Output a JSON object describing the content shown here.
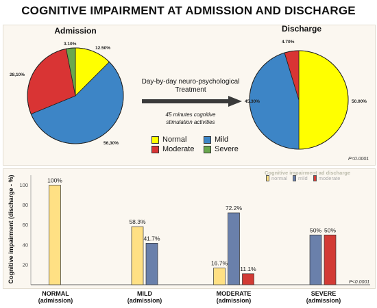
{
  "title": "COGNITIVE IMPAIRMENT AT ADMISSION AND DISCHARGE",
  "colors": {
    "normal": "#ffff00",
    "mild": "#3d85c6",
    "moderate": "#d93434",
    "severe": "#6aa84f"
  },
  "middle": {
    "line1": "Day-by-day neuro-psychological",
    "line2": "Treatment",
    "italic1": "45 minutes cognitive",
    "italic2": "stimulation activities"
  },
  "legend": [
    "Normal",
    "Mild",
    "Moderate",
    "Severe"
  ],
  "top_pvalue": "P<0.0001",
  "bottom_pvalue": "P<0.0001",
  "chart_data": [
    {
      "type": "pie",
      "title": "Admission",
      "labels": [
        "Normal",
        "Mild",
        "Moderate",
        "Severe"
      ],
      "values": [
        12.5,
        56.3,
        28.1,
        3.1
      ],
      "value_labels": [
        "12.50%",
        "56,30%",
        "28,10%",
        "3.10%"
      ]
    },
    {
      "type": "pie",
      "title": "Discharge",
      "labels": [
        "Normal",
        "Mild",
        "Moderate"
      ],
      "values": [
        50.0,
        45.3,
        4.7
      ],
      "value_labels": [
        "50.00%",
        "45.30%",
        "4.70%"
      ]
    },
    {
      "type": "bar",
      "ylabel": "Cognitive impairment (discharge - %)",
      "legend_title": "Cognitive impairment ad discharge",
      "categories": [
        [
          "NORMAL",
          "(admission)"
        ],
        [
          "MILD",
          "(admission)"
        ],
        [
          "MODERATE",
          "(admission)"
        ],
        [
          "SEVERE",
          "(admission)"
        ]
      ],
      "ylim": [
        0,
        110
      ],
      "yticks": [
        20,
        40,
        60,
        80,
        100
      ],
      "series": [
        {
          "name": "normal",
          "values": [
            100,
            58.3,
            16.7,
            null
          ],
          "labels": [
            "100%",
            "58.3%",
            "16.7%",
            ""
          ]
        },
        {
          "name": "mild",
          "values": [
            null,
            41.7,
            72.2,
            50
          ],
          "labels": [
            "",
            "41.7%",
            "72.2%",
            "50%"
          ]
        },
        {
          "name": "moderate",
          "values": [
            null,
            null,
            11.1,
            50
          ],
          "labels": [
            "",
            "",
            "11.1%",
            "50%"
          ]
        }
      ]
    }
  ]
}
